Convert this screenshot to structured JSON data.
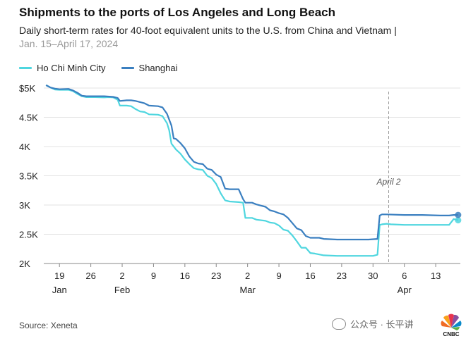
{
  "header": {
    "title": "Shipments to the ports of Los Angeles and Long Beach",
    "subtitle": "Daily short-term rates for 40-foot equivalent units to the U.S. from China and Vietnam |",
    "dates": "Jan. 15–April 17, 2024"
  },
  "footer": {
    "source": "Source: Xeneta",
    "watermark": "公众号 · 长平讲",
    "logo": "CNBC"
  },
  "chart_data": {
    "type": "line",
    "title": "Shipments to the ports of Los Angeles and Long Beach",
    "xlabel": "",
    "ylabel": "",
    "xlim": [
      15.5,
      108.5
    ],
    "ylim": [
      2000,
      5000
    ],
    "y_ticks": [
      {
        "value": 5000,
        "label": "$5K"
      },
      {
        "value": 4500,
        "label": "4.5K"
      },
      {
        "value": 4000,
        "label": "4K"
      },
      {
        "value": 3500,
        "label": "3.5K"
      },
      {
        "value": 3000,
        "label": "3K"
      },
      {
        "value": 2500,
        "label": "2.5K"
      },
      {
        "value": 2000,
        "label": "2K"
      }
    ],
    "x_ticks": [
      {
        "day": 19,
        "label": "19"
      },
      {
        "day": 26,
        "label": "26"
      },
      {
        "day": 33,
        "label": "2"
      },
      {
        "day": 40,
        "label": "9"
      },
      {
        "day": 47,
        "label": "16"
      },
      {
        "day": 54,
        "label": "23"
      },
      {
        "day": 61,
        "label": "2"
      },
      {
        "day": 68,
        "label": "9"
      },
      {
        "day": 75,
        "label": "16"
      },
      {
        "day": 82,
        "label": "23"
      },
      {
        "day": 89,
        "label": "30"
      },
      {
        "day": 96,
        "label": "6"
      },
      {
        "day": 103,
        "label": "13"
      }
    ],
    "month_labels": [
      {
        "day": 19,
        "label": "Jan"
      },
      {
        "day": 33,
        "label": "Feb"
      },
      {
        "day": 61,
        "label": "Mar"
      },
      {
        "day": 96,
        "label": "Apr"
      }
    ],
    "annotation": {
      "day": 92.5,
      "label": "April 2"
    },
    "series": [
      {
        "name": "Ho Chi Minh City",
        "color": "#4fd6df",
        "points": [
          [
            16,
            5050
          ],
          [
            17,
            5010
          ],
          [
            18,
            4975
          ],
          [
            19,
            4970
          ],
          [
            21,
            4970
          ],
          [
            22,
            4950
          ],
          [
            23,
            4900
          ],
          [
            24,
            4860
          ],
          [
            25,
            4845
          ],
          [
            27,
            4845
          ],
          [
            29,
            4840
          ],
          [
            30,
            4845
          ],
          [
            31,
            4840
          ],
          [
            32,
            4800
          ],
          [
            32.5,
            4700
          ],
          [
            34,
            4700
          ],
          [
            35,
            4690
          ],
          [
            36,
            4640
          ],
          [
            37,
            4600
          ],
          [
            38,
            4590
          ],
          [
            39,
            4550
          ],
          [
            41,
            4545
          ],
          [
            42,
            4520
          ],
          [
            43,
            4400
          ],
          [
            43.5,
            4280
          ],
          [
            44,
            4050
          ],
          [
            45,
            3950
          ],
          [
            46,
            3880
          ],
          [
            47,
            3780
          ],
          [
            48,
            3700
          ],
          [
            49,
            3630
          ],
          [
            50,
            3610
          ],
          [
            51,
            3600
          ],
          [
            52,
            3500
          ],
          [
            53,
            3460
          ],
          [
            54,
            3360
          ],
          [
            55,
            3200
          ],
          [
            56,
            3080
          ],
          [
            57,
            3060
          ],
          [
            59,
            3050
          ],
          [
            60,
            3040
          ],
          [
            60.5,
            2780
          ],
          [
            62,
            2780
          ],
          [
            63,
            2750
          ],
          [
            65,
            2730
          ],
          [
            66,
            2700
          ],
          [
            67,
            2690
          ],
          [
            68,
            2650
          ],
          [
            69,
            2580
          ],
          [
            70,
            2560
          ],
          [
            71,
            2480
          ],
          [
            72,
            2380
          ],
          [
            73,
            2270
          ],
          [
            74,
            2270
          ],
          [
            75,
            2180
          ],
          [
            76,
            2170
          ],
          [
            78,
            2140
          ],
          [
            81,
            2130
          ],
          [
            85,
            2130
          ],
          [
            88,
            2130
          ],
          [
            89,
            2130
          ],
          [
            90,
            2150
          ],
          [
            90.5,
            2660
          ],
          [
            91,
            2670
          ],
          [
            92,
            2680
          ],
          [
            93,
            2670
          ],
          [
            96,
            2660
          ],
          [
            100,
            2660
          ],
          [
            104,
            2660
          ],
          [
            106,
            2660
          ],
          [
            107,
            2760
          ],
          [
            108,
            2740
          ]
        ]
      },
      {
        "name": "Shanghai",
        "color": "#3a7fc0",
        "points": [
          [
            16,
            5050
          ],
          [
            17,
            5010
          ],
          [
            18,
            4990
          ],
          [
            19,
            4980
          ],
          [
            21,
            4985
          ],
          [
            22,
            4960
          ],
          [
            23,
            4920
          ],
          [
            24,
            4870
          ],
          [
            25,
            4860
          ],
          [
            27,
            4860
          ],
          [
            29,
            4860
          ],
          [
            31,
            4850
          ],
          [
            32,
            4830
          ],
          [
            32.5,
            4780
          ],
          [
            34,
            4790
          ],
          [
            35,
            4790
          ],
          [
            36,
            4780
          ],
          [
            37,
            4760
          ],
          [
            38,
            4740
          ],
          [
            39,
            4700
          ],
          [
            41,
            4690
          ],
          [
            42,
            4670
          ],
          [
            43,
            4560
          ],
          [
            44,
            4360
          ],
          [
            44.5,
            4140
          ],
          [
            45,
            4130
          ],
          [
            46,
            4060
          ],
          [
            47,
            3970
          ],
          [
            48,
            3830
          ],
          [
            49,
            3740
          ],
          [
            50,
            3710
          ],
          [
            51,
            3700
          ],
          [
            52,
            3620
          ],
          [
            53,
            3600
          ],
          [
            54,
            3520
          ],
          [
            55,
            3480
          ],
          [
            56,
            3280
          ],
          [
            57,
            3270
          ],
          [
            59,
            3270
          ],
          [
            60,
            3100
          ],
          [
            60.5,
            3040
          ],
          [
            62,
            3040
          ],
          [
            63,
            3010
          ],
          [
            65,
            2970
          ],
          [
            66,
            2910
          ],
          [
            67,
            2890
          ],
          [
            68,
            2860
          ],
          [
            69,
            2840
          ],
          [
            70,
            2780
          ],
          [
            71,
            2690
          ],
          [
            72,
            2600
          ],
          [
            73,
            2570
          ],
          [
            74,
            2470
          ],
          [
            75,
            2440
          ],
          [
            77,
            2440
          ],
          [
            78,
            2420
          ],
          [
            81,
            2410
          ],
          [
            86,
            2410
          ],
          [
            88,
            2410
          ],
          [
            90,
            2420
          ],
          [
            90.5,
            2820
          ],
          [
            91,
            2840
          ],
          [
            92,
            2840
          ],
          [
            96,
            2830
          ],
          [
            100,
            2830
          ],
          [
            104,
            2820
          ],
          [
            106,
            2820
          ],
          [
            107,
            2830
          ],
          [
            108,
            2830
          ]
        ]
      }
    ]
  }
}
